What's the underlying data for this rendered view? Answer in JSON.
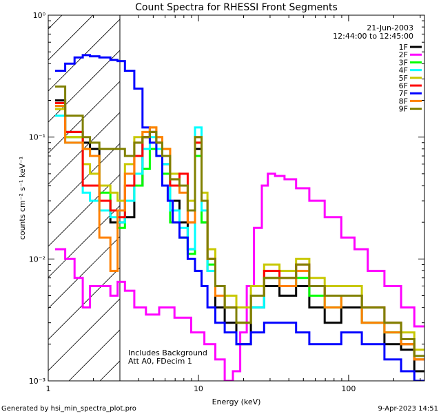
{
  "chart_data": {
    "type": "line",
    "title": "Count Spectra for RHESSI Front Segments",
    "xlabel": "Energy (keV)",
    "ylabel": "counts cm⁻² s⁻¹ keV⁻¹",
    "xscale": "log",
    "yscale": "log",
    "xlim": [
      1,
      320
    ],
    "ylim": [
      0.001,
      1.0
    ],
    "x_tick_labels": [
      "1",
      "10",
      "100"
    ],
    "y_tick_labels": [
      "10⁻³",
      "10⁻²",
      "10⁻¹",
      "10⁰"
    ],
    "grid": false,
    "legend_position": "top-right",
    "date_label": "21-Jun-2003",
    "time_range_label": "12:44:00 to 12:45:00",
    "shaded_region_xmax": 3,
    "annotations": [
      "Includes Background",
      "Att A0, FDecim 1"
    ],
    "footer_left": "Generated by hsi_min_spectra_plot.pro",
    "footer_right": "9-Apr-2023 14:51",
    "series": [
      {
        "name": "1F",
        "color": "#000000",
        "x": [
          1.2,
          1.4,
          1.6,
          1.8,
          2.0,
          2.4,
          2.8,
          3.0,
          3.5,
          4.0,
          4.5,
          5.0,
          5.5,
          6.0,
          7.0,
          8.0,
          9.0,
          10.0,
          11.0,
          12.0,
          14.0,
          16.0,
          20.0,
          25.0,
          30.0,
          40.0,
          50.0,
          60.0,
          80.0,
          100.0,
          150.0,
          200.0,
          250.0,
          300.0
        ],
        "y": [
          0.2,
          0.11,
          0.11,
          0.09,
          0.08,
          0.03,
          0.02,
          0.02,
          0.022,
          0.04,
          0.1,
          0.11,
          0.09,
          0.06,
          0.03,
          0.02,
          0.012,
          0.08,
          0.02,
          0.008,
          0.004,
          0.003,
          0.002,
          0.004,
          0.006,
          0.005,
          0.006,
          0.004,
          0.003,
          0.004,
          0.003,
          0.002,
          0.0018,
          0.0012
        ]
      },
      {
        "name": "2F",
        "color": "#ff00ff",
        "x": [
          1.2,
          1.4,
          1.6,
          1.8,
          2.0,
          2.4,
          2.8,
          3.0,
          3.5,
          4.0,
          5.0,
          6.0,
          8.0,
          10.0,
          12.0,
          14.0,
          16.0,
          18.0,
          20.0,
          22.0,
          25.0,
          28.0,
          30.0,
          35.0,
          40.0,
          50.0,
          60.0,
          80.0,
          100.0,
          120.0,
          150.0,
          200.0,
          250.0,
          300.0
        ],
        "y": [
          0.012,
          0.01,
          0.007,
          0.004,
          0.006,
          0.006,
          0.005,
          0.0065,
          0.0055,
          0.004,
          0.0035,
          0.004,
          0.0033,
          0.0025,
          0.002,
          0.0015,
          0.001,
          0.0012,
          0.0025,
          0.006,
          0.018,
          0.04,
          0.05,
          0.048,
          0.045,
          0.038,
          0.03,
          0.022,
          0.015,
          0.012,
          0.008,
          0.006,
          0.004,
          0.0028
        ]
      },
      {
        "name": "3F",
        "color": "#00ff00",
        "x": [
          1.2,
          1.4,
          1.6,
          1.8,
          2.0,
          2.4,
          2.8,
          3.0,
          3.5,
          4.0,
          4.5,
          5.0,
          5.5,
          6.0,
          7.0,
          8.0,
          9.0,
          10.0,
          11.0,
          12.0,
          14.0,
          16.0,
          20.0,
          25.0,
          30.0,
          40.0,
          50.0,
          60.0,
          80.0,
          100.0,
          150.0,
          200.0,
          250.0,
          300.0
        ],
        "y": [
          0.18,
          0.1,
          0.1,
          0.08,
          0.07,
          0.035,
          0.025,
          0.018,
          0.03,
          0.04,
          0.055,
          0.08,
          0.07,
          0.05,
          0.02,
          0.015,
          0.011,
          0.07,
          0.02,
          0.009,
          0.005,
          0.004,
          0.003,
          0.005,
          0.007,
          0.006,
          0.007,
          0.005,
          0.004,
          0.005,
          0.003,
          0.0025,
          0.002,
          0.0015
        ]
      },
      {
        "name": "4F",
        "color": "#00ffff",
        "x": [
          1.2,
          1.4,
          1.6,
          1.8,
          2.0,
          2.4,
          2.8,
          3.0,
          3.5,
          4.0,
          4.5,
          5.0,
          5.5,
          6.0,
          7.0,
          8.0,
          9.0,
          10.0,
          11.0,
          12.0,
          14.0,
          16.0,
          20.0,
          25.0,
          30.0,
          40.0,
          50.0,
          60.0,
          80.0,
          100.0,
          150.0,
          200.0,
          250.0,
          300.0
        ],
        "y": [
          0.15,
          0.09,
          0.09,
          0.035,
          0.03,
          0.025,
          0.022,
          0.02,
          0.03,
          0.05,
          0.08,
          0.1,
          0.08,
          0.06,
          0.025,
          0.018,
          0.012,
          0.12,
          0.025,
          0.008,
          0.005,
          0.004,
          0.003,
          0.004,
          0.007,
          0.006,
          0.008,
          0.006,
          0.005,
          0.005,
          0.004,
          0.003,
          0.0022,
          0.0016
        ]
      },
      {
        "name": "5F",
        "color": "#c8c800",
        "x": [
          1.2,
          1.4,
          1.6,
          1.8,
          2.0,
          2.4,
          2.8,
          3.0,
          3.5,
          4.0,
          4.5,
          5.0,
          5.5,
          6.0,
          7.0,
          8.0,
          9.0,
          10.0,
          11.0,
          12.0,
          14.0,
          16.0,
          20.0,
          25.0,
          30.0,
          40.0,
          50.0,
          60.0,
          80.0,
          100.0,
          150.0,
          200.0,
          250.0,
          300.0
        ],
        "y": [
          0.17,
          0.1,
          0.1,
          0.06,
          0.05,
          0.04,
          0.035,
          0.03,
          0.06,
          0.1,
          0.11,
          0.12,
          0.1,
          0.08,
          0.05,
          0.04,
          0.03,
          0.09,
          0.035,
          0.012,
          0.006,
          0.005,
          0.004,
          0.006,
          0.009,
          0.008,
          0.01,
          0.007,
          0.006,
          0.006,
          0.004,
          0.003,
          0.0025,
          0.0018
        ]
      },
      {
        "name": "6F",
        "color": "#ff0000",
        "x": [
          1.2,
          1.4,
          1.6,
          1.8,
          2.0,
          2.4,
          2.8,
          3.0,
          3.5,
          4.0,
          4.5,
          5.0,
          5.5,
          6.0,
          7.0,
          8.0,
          9.0,
          10.0,
          11.0,
          12.0,
          14.0,
          16.0,
          20.0,
          25.0,
          30.0,
          40.0,
          50.0,
          60.0,
          80.0,
          100.0,
          150.0,
          200.0,
          250.0,
          300.0
        ],
        "y": [
          0.19,
          0.11,
          0.11,
          0.04,
          0.04,
          0.03,
          0.025,
          0.022,
          0.04,
          0.07,
          0.1,
          0.11,
          0.09,
          0.07,
          0.04,
          0.05,
          0.02,
          0.09,
          0.03,
          0.01,
          0.005,
          0.004,
          0.003,
          0.005,
          0.008,
          0.007,
          0.009,
          0.006,
          0.005,
          0.005,
          0.004,
          0.003,
          0.002,
          0.0015
        ]
      },
      {
        "name": "7F",
        "color": "#0000ff",
        "x": [
          1.2,
          1.4,
          1.6,
          1.8,
          2.0,
          2.4,
          2.8,
          3.0,
          3.5,
          4.0,
          4.5,
          5.0,
          5.5,
          6.0,
          6.5,
          7.0,
          8.0,
          9.0,
          10.0,
          11.0,
          12.0,
          14.0,
          16.0,
          20.0,
          25.0,
          30.0,
          40.0,
          50.0,
          60.0,
          80.0,
          100.0,
          150.0,
          200.0,
          250.0,
          300.0
        ],
        "y": [
          0.35,
          0.4,
          0.45,
          0.47,
          0.46,
          0.45,
          0.43,
          0.42,
          0.35,
          0.25,
          0.12,
          0.09,
          0.07,
          0.04,
          0.03,
          0.02,
          0.015,
          0.01,
          0.008,
          0.006,
          0.004,
          0.003,
          0.0025,
          0.002,
          0.0025,
          0.003,
          0.003,
          0.0025,
          0.002,
          0.002,
          0.0025,
          0.002,
          0.0015,
          0.0012,
          0.001
        ]
      },
      {
        "name": "8F",
        "color": "#ff8000",
        "x": [
          1.2,
          1.4,
          1.6,
          1.8,
          2.0,
          2.4,
          2.8,
          3.0,
          3.5,
          4.0,
          4.5,
          5.0,
          5.5,
          6.0,
          7.0,
          8.0,
          9.0,
          10.0,
          11.0,
          12.0,
          14.0,
          16.0,
          20.0,
          25.0,
          30.0,
          40.0,
          50.0,
          60.0,
          80.0,
          100.0,
          150.0,
          200.0,
          250.0,
          300.0
        ],
        "y": [
          0.18,
          0.09,
          0.09,
          0.08,
          0.07,
          0.015,
          0.008,
          0.025,
          0.05,
          0.09,
          0.11,
          0.12,
          0.1,
          0.08,
          0.045,
          0.035,
          0.02,
          0.1,
          0.03,
          0.01,
          0.005,
          0.004,
          0.003,
          0.005,
          0.007,
          0.006,
          0.008,
          0.006,
          0.004,
          0.005,
          0.003,
          0.0025,
          0.002,
          0.0015
        ]
      },
      {
        "name": "9F",
        "color": "#808000",
        "x": [
          1.2,
          1.4,
          1.6,
          1.8,
          2.0,
          2.4,
          2.8,
          3.0,
          3.5,
          4.0,
          4.5,
          5.0,
          5.5,
          6.0,
          7.0,
          8.0,
          9.0,
          10.0,
          11.0,
          12.0,
          14.0,
          16.0,
          20.0,
          25.0,
          30.0,
          40.0,
          50.0,
          60.0,
          80.0,
          100.0,
          150.0,
          200.0,
          250.0,
          300.0
        ],
        "y": [
          0.26,
          0.15,
          0.15,
          0.1,
          0.09,
          0.08,
          0.08,
          0.08,
          0.07,
          0.09,
          0.1,
          0.11,
          0.09,
          0.07,
          0.045,
          0.04,
          0.025,
          0.1,
          0.03,
          0.01,
          0.006,
          0.004,
          0.003,
          0.005,
          0.007,
          0.007,
          0.009,
          0.006,
          0.005,
          0.005,
          0.004,
          0.003,
          0.0022,
          0.0016
        ]
      }
    ]
  }
}
